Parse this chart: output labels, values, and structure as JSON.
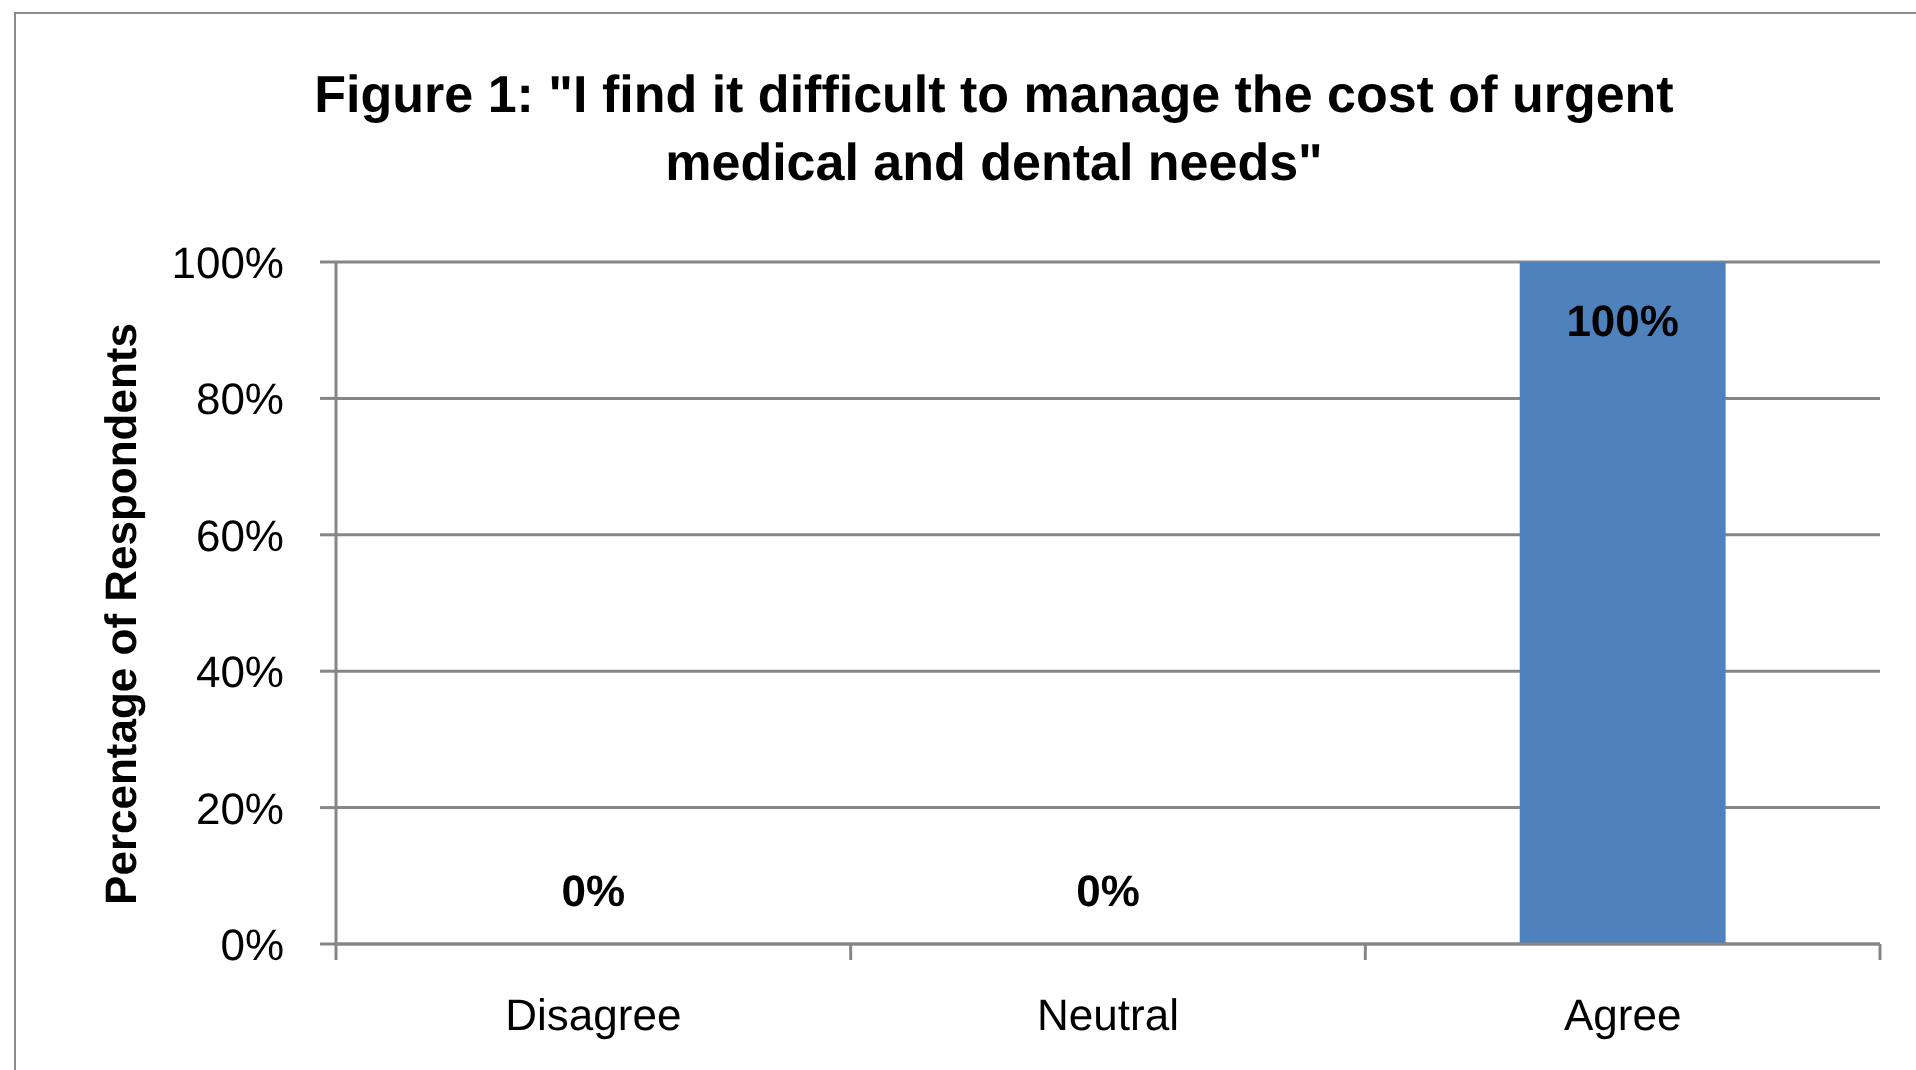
{
  "chart_data": {
    "type": "bar",
    "title": "Figure 1: \"I find it difficult to manage the cost of urgent medical and dental needs\"",
    "ylabel": "Percentage of Respondents",
    "categories": [
      "Disagree",
      "Neutral",
      "Agree"
    ],
    "values": [
      0,
      0,
      100
    ],
    "color": "#4f81bd",
    "value_labels": [
      "0%",
      "0%",
      "100%"
    ],
    "ylim": [
      0,
      100
    ],
    "yticks": [
      {
        "value": 0,
        "label": "0%"
      },
      {
        "value": 20,
        "label": "20%"
      },
      {
        "value": 40,
        "label": "40%"
      },
      {
        "value": 60,
        "label": "60%"
      },
      {
        "value": 80,
        "label": "80%"
      },
      {
        "value": 100,
        "label": "100%"
      }
    ],
    "grid": "y"
  }
}
